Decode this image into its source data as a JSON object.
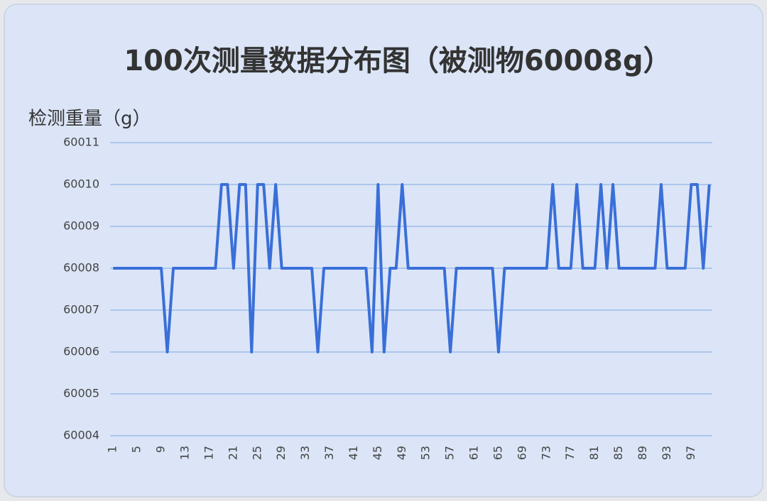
{
  "chart_data": {
    "type": "line",
    "title": "100次测量数据分布图（被测物60008g）",
    "y_label": "检测重量（g）",
    "x": [
      1,
      2,
      3,
      4,
      5,
      6,
      7,
      8,
      9,
      10,
      11,
      12,
      13,
      14,
      15,
      16,
      17,
      18,
      19,
      20,
      21,
      22,
      23,
      24,
      25,
      26,
      27,
      28,
      29,
      30,
      31,
      32,
      33,
      34,
      35,
      36,
      37,
      38,
      39,
      40,
      41,
      42,
      43,
      44,
      45,
      46,
      47,
      48,
      49,
      50,
      51,
      52,
      53,
      54,
      55,
      56,
      57,
      58,
      59,
      60,
      61,
      62,
      63,
      64,
      65,
      66,
      67,
      68,
      69,
      70,
      71,
      72,
      73,
      74,
      75,
      76,
      77,
      78,
      79,
      80,
      81,
      82,
      83,
      84,
      85,
      86,
      87,
      88,
      89,
      90,
      91,
      92,
      93,
      94,
      95,
      96,
      97,
      98,
      99,
      100
    ],
    "series": [
      {
        "color": "#3a6fd8",
        "values": [
          60008,
          60008,
          60008,
          60008,
          60008,
          60008,
          60008,
          60008,
          60008,
          60006,
          60008,
          60008,
          60008,
          60008,
          60008,
          60008,
          60008,
          60008,
          60010,
          60010,
          60008,
          60010,
          60010,
          60006,
          60010,
          60010,
          60008,
          60010,
          60008,
          60008,
          60008,
          60008,
          60008,
          60008,
          60006,
          60008,
          60008,
          60008,
          60008,
          60008,
          60008,
          60008,
          60008,
          60006,
          60010,
          60006,
          60008,
          60008,
          60010,
          60008,
          60008,
          60008,
          60008,
          60008,
          60008,
          60008,
          60006,
          60008,
          60008,
          60008,
          60008,
          60008,
          60008,
          60008,
          60006,
          60008,
          60008,
          60008,
          60008,
          60008,
          60008,
          60008,
          60008,
          60010,
          60008,
          60008,
          60008,
          60010,
          60008,
          60008,
          60008,
          60010,
          60008,
          60010,
          60008,
          60008,
          60008,
          60008,
          60008,
          60008,
          60008,
          60010,
          60008,
          60008,
          60008,
          60008,
          60010,
          60010,
          60008,
          60010
        ]
      }
    ],
    "xlim": [
      0.5,
      100.5
    ],
    "xticks": [
      1,
      5,
      9,
      13,
      17,
      21,
      25,
      29,
      33,
      37,
      41,
      45,
      49,
      53,
      57,
      61,
      65,
      69,
      73,
      77,
      81,
      85,
      89,
      93,
      97
    ],
    "ylim": [
      60004,
      60011
    ],
    "yticks": [
      60004,
      60005,
      60006,
      60007,
      60008,
      60009,
      60010,
      60011
    ],
    "grid": true
  }
}
